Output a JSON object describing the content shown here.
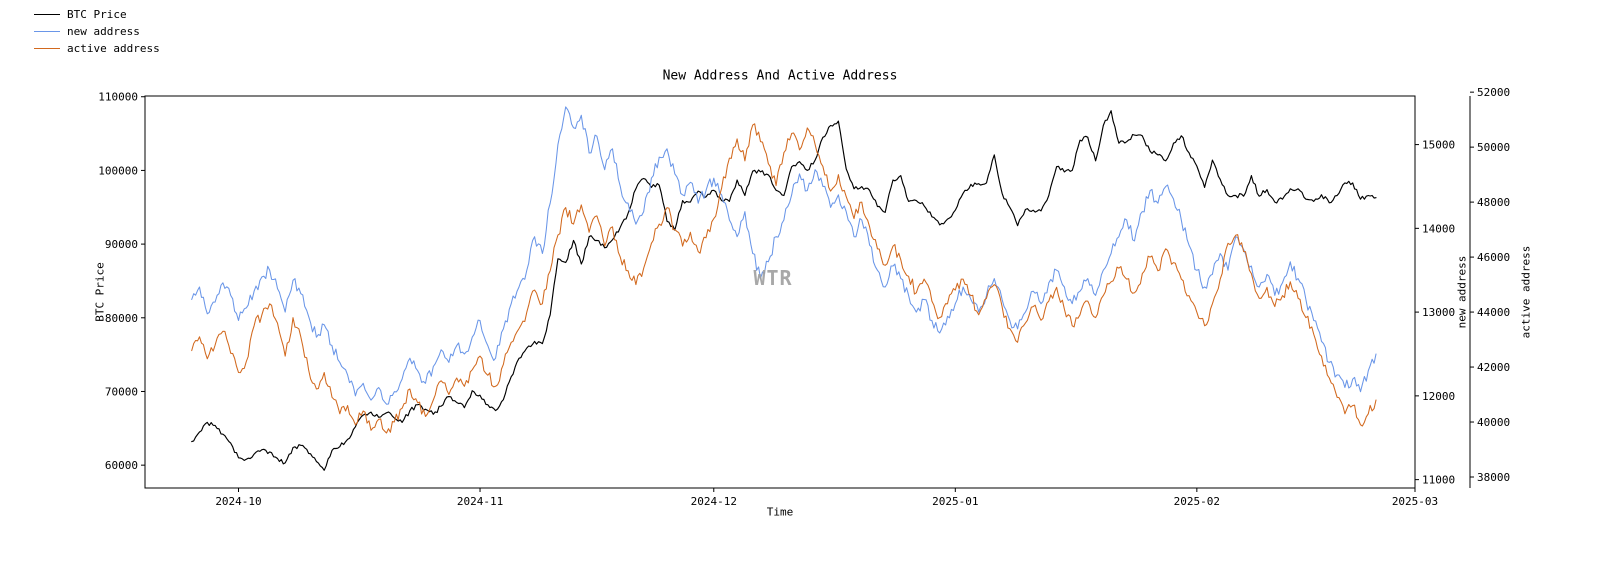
{
  "title": "New Address And Active Address",
  "watermark": "WTR",
  "legend": {
    "items": [
      {
        "label": "BTC Price",
        "color": "#000000"
      },
      {
        "label": "new address",
        "color": "#6a96e8"
      },
      {
        "label": "active address",
        "color": "#d2691e"
      }
    ]
  },
  "axes_labels": {
    "x_label": "Time",
    "left_label": "BTC Price",
    "right_inner_label": "new address",
    "right_outer_label": "active address"
  },
  "chart_data": {
    "type": "line",
    "title": "New Address And Active Address",
    "xlabel": "Time",
    "x_unit": "days since 2024-09-25",
    "x_domain": [
      -6,
      157
    ],
    "x_ticks": [
      {
        "pos": 6,
        "label": "2024-10"
      },
      {
        "pos": 37,
        "label": "2024-11"
      },
      {
        "pos": 67,
        "label": "2024-12"
      },
      {
        "pos": 98,
        "label": "2025-01"
      },
      {
        "pos": 129,
        "label": "2025-02"
      },
      {
        "pos": 157,
        "label": "2025-03"
      }
    ],
    "axes": [
      {
        "id": "btc",
        "label": "BTC Price",
        "side": "left",
        "range": [
          56900,
          110100
        ],
        "ticks": [
          60000,
          70000,
          80000,
          90000,
          100000,
          110000
        ]
      },
      {
        "id": "new",
        "label": "new address",
        "side": "right-inner",
        "range": [
          10900,
          15580
        ],
        "ticks": [
          11000,
          12000,
          13000,
          14000,
          15000
        ]
      },
      {
        "id": "active",
        "label": "active address",
        "side": "right-outer",
        "range": [
          37600,
          51860
        ],
        "ticks": [
          38000,
          40000,
          42000,
          44000,
          46000,
          48000,
          50000,
          52000
        ]
      }
    ],
    "series": [
      {
        "name": "BTC Price",
        "color": "#000000",
        "axis": "btc",
        "values": [
          63200,
          64500,
          65800,
          65400,
          64200,
          63000,
          61000,
          60800,
          61500,
          62100,
          61800,
          60900,
          60300,
          62400,
          62700,
          61600,
          60500,
          59300,
          62000,
          62500,
          63500,
          65200,
          66800,
          67200,
          66500,
          67100,
          66400,
          65800,
          67400,
          68200,
          67600,
          66900,
          68000,
          69300,
          68500,
          67800,
          70100,
          69500,
          68200,
          67400,
          68900,
          72000,
          74500,
          75900,
          76800,
          76500,
          80400,
          88000,
          87500,
          90500,
          87300,
          91000,
          90500,
          89500,
          90600,
          92300,
          94200,
          97500,
          98900,
          97700,
          98000,
          93100,
          91900,
          95900,
          95700,
          97200,
          96400,
          97300,
          95900,
          95800,
          98700,
          96600,
          99900,
          99800,
          99400,
          97300,
          96600,
          100500,
          101200,
          100000,
          101400,
          104500,
          106100,
          106700,
          100200,
          97500,
          97800,
          97300,
          95100,
          94300,
          98700,
          99300,
          95800,
          95900,
          95200,
          93700,
          92600,
          93400,
          94600,
          96900,
          98100,
          98200,
          98300,
          102100,
          96900,
          95000,
          92500,
          94700,
          94600,
          94500,
          96600,
          100500,
          99800,
          100000,
          104100,
          104500,
          101300,
          106100,
          108100,
          103700,
          103900,
          104800,
          104700,
          102600,
          102100,
          101300,
          103700,
          104700,
          102400,
          100600,
          97700,
          101400,
          98800,
          96600,
          96600,
          96500,
          99300,
          96500,
          97400,
          95700,
          96100,
          97500,
          97500,
          96100,
          95800,
          96700,
          95600,
          96600,
          98300,
          98300,
          96100,
          96600,
          96300
        ]
      },
      {
        "name": "new address",
        "color": "#6a96e8",
        "axis": "new",
        "values": [
          13150,
          13300,
          12980,
          13120,
          13350,
          13200,
          12900,
          13050,
          13250,
          13420,
          13500,
          13280,
          13000,
          13380,
          13220,
          12950,
          12700,
          12850,
          12600,
          12400,
          12250,
          12000,
          12150,
          11950,
          12100,
          11900,
          12050,
          12200,
          12450,
          12300,
          12150,
          12350,
          12550,
          12400,
          12600,
          12500,
          12700,
          12900,
          12600,
          12450,
          12800,
          13100,
          13300,
          13500,
          13900,
          13700,
          14300,
          15000,
          15450,
          15200,
          15350,
          14900,
          15100,
          14700,
          14950,
          14500,
          14300,
          14050,
          14200,
          14600,
          14850,
          14950,
          14650,
          14400,
          14550,
          14300,
          14450,
          14600,
          14400,
          14100,
          13900,
          14200,
          13700,
          13400,
          13600,
          13900,
          14100,
          14400,
          14650,
          14450,
          14700,
          14500,
          14250,
          14400,
          14200,
          13900,
          14100,
          13800,
          13500,
          13300,
          13550,
          13400,
          13200,
          13000,
          13150,
          12900,
          12750,
          12950,
          13100,
          13300,
          13150,
          13000,
          13200,
          13400,
          13150,
          12900,
          12800,
          13000,
          13250,
          13100,
          13350,
          13500,
          13300,
          13100,
          13250,
          13400,
          13200,
          13500,
          13700,
          13900,
          14100,
          13850,
          14200,
          14450,
          14300,
          14500,
          14350,
          14100,
          13800,
          13500,
          13300,
          13450,
          13700,
          13500,
          13900,
          13750,
          13550,
          13300,
          13450,
          13200,
          13350,
          13600,
          13400,
          13150,
          12900,
          12650,
          12400,
          12250,
          12100,
          12200,
          12050,
          12300,
          12500
        ]
      },
      {
        "name": "active address",
        "color": "#d2691e",
        "axis": "active",
        "values": [
          42600,
          43100,
          42300,
          42800,
          43300,
          42500,
          41800,
          42200,
          43500,
          43900,
          44300,
          43600,
          42400,
          43800,
          43100,
          41900,
          41200,
          41800,
          40900,
          40300,
          40600,
          39900,
          40400,
          39700,
          40100,
          39600,
          40000,
          40500,
          41200,
          40700,
          40200,
          40800,
          41500,
          41000,
          41600,
          41300,
          41900,
          42400,
          41700,
          41300,
          42100,
          42900,
          43400,
          44000,
          44800,
          44300,
          45500,
          46800,
          47800,
          47200,
          47900,
          46900,
          47500,
          46400,
          47100,
          46000,
          45500,
          45000,
          45600,
          46500,
          47200,
          47800,
          47000,
          46400,
          46900,
          46200,
          46700,
          47400,
          48500,
          49600,
          50300,
          49500,
          50800,
          50200,
          49400,
          48600,
          49800,
          50500,
          49900,
          50700,
          50100,
          49300,
          48400,
          49000,
          48200,
          47400,
          48000,
          47100,
          46300,
          45700,
          46400,
          45900,
          45300,
          44700,
          45200,
          44400,
          43800,
          44300,
          44800,
          45200,
          44600,
          43900,
          44500,
          45000,
          44200,
          43400,
          42900,
          43600,
          44200,
          43700,
          44400,
          44900,
          44100,
          43500,
          43900,
          44400,
          43800,
          44600,
          45100,
          45600,
          45200,
          44700,
          45400,
          46000,
          45500,
          46300,
          45800,
          45200,
          44600,
          44000,
          43500,
          44300,
          45200,
          46500,
          46800,
          46200,
          45400,
          44500,
          44900,
          44200,
          44600,
          45100,
          44500,
          43800,
          43200,
          42400,
          41600,
          40900,
          40300,
          40600,
          39900,
          40300,
          40800
        ]
      }
    ]
  }
}
